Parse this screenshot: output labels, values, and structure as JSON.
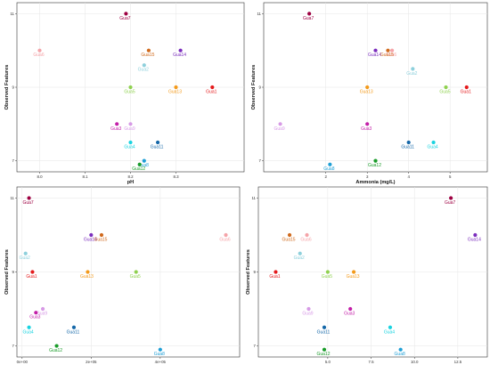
{
  "colors": {
    "Gua1": "#e41a1c",
    "Gua3": "#c31fa8",
    "Gua4": "#19d3e0",
    "Gua5": "#8fd14f",
    "Gua6": "#f5a3a8",
    "Gua7": "#9e0142",
    "Gua8": "#1f9fd6",
    "Gua9": "#d79ae6",
    "Gua11": "#1467a8",
    "Gua12": "#1a9c2a",
    "Gua13": "#f39a1b",
    "Gua14": "#7b2dbd",
    "Gua15": "#d06a1d",
    "Gua2": "#8ed0dc"
  },
  "chart_data": [
    {
      "type": "scatter",
      "xlabel": "pH",
      "ylabel": "Observed Features",
      "xlim": [
        7.95,
        8.45
      ],
      "ylim": [
        6.7,
        11.3
      ],
      "xticks": [
        8.0,
        8.1,
        8.2,
        8.3
      ],
      "xtick_labels": [
        "8.0",
        "8.1",
        "8.2",
        "8.3"
      ],
      "yticks": [
        7,
        9,
        11
      ],
      "ytick_labels": [
        "7",
        "9",
        "11"
      ],
      "points": [
        {
          "label": "Gua7",
          "x": 8.19,
          "y": 11.0
        },
        {
          "label": "Gua6",
          "x": 8.0,
          "y": 10.0
        },
        {
          "label": "Gua15",
          "x": 8.24,
          "y": 10.0
        },
        {
          "label": "Gua14",
          "x": 8.31,
          "y": 10.0
        },
        {
          "label": "Gua2",
          "x": 8.23,
          "y": 9.6
        },
        {
          "label": "Gua5",
          "x": 8.2,
          "y": 9.0
        },
        {
          "label": "Gua13",
          "x": 8.3,
          "y": 9.0
        },
        {
          "label": "Gua1",
          "x": 8.38,
          "y": 9.0
        },
        {
          "label": "Gua3",
          "x": 8.17,
          "y": 8.0
        },
        {
          "label": "Gua9",
          "x": 8.2,
          "y": 8.0
        },
        {
          "label": "Gua4",
          "x": 8.2,
          "y": 7.5
        },
        {
          "label": "Gua11",
          "x": 8.26,
          "y": 7.5
        },
        {
          "label": "Gua8",
          "x": 8.23,
          "y": 7.0
        },
        {
          "label": "Gua12",
          "x": 8.22,
          "y": 6.9
        }
      ]
    },
    {
      "type": "scatter",
      "xlabel": "Ammonia (mg/L)",
      "ylabel": "Observed Features",
      "xlim": [
        0.5,
        5.9
      ],
      "ylim": [
        6.7,
        11.3
      ],
      "xticks": [
        2,
        3,
        4,
        5
      ],
      "xtick_labels": [
        "2",
        "3",
        "4",
        "5"
      ],
      "yticks": [
        7,
        9,
        11
      ],
      "ytick_labels": [
        "7",
        "9",
        "11"
      ],
      "points": [
        {
          "label": "Gua7",
          "x": 1.6,
          "y": 11.0
        },
        {
          "label": "Gua14",
          "x": 3.2,
          "y": 10.0
        },
        {
          "label": "Gua6",
          "x": 3.6,
          "y": 10.0
        },
        {
          "label": "Gua15",
          "x": 3.5,
          "y": 10.0
        },
        {
          "label": "Gua2",
          "x": 4.1,
          "y": 9.5
        },
        {
          "label": "Gua13",
          "x": 3.0,
          "y": 9.0
        },
        {
          "label": "Gua5",
          "x": 4.9,
          "y": 9.0
        },
        {
          "label": "Gua1",
          "x": 5.4,
          "y": 9.0
        },
        {
          "label": "Gua9",
          "x": 0.9,
          "y": 8.0
        },
        {
          "label": "Gua3",
          "x": 3.0,
          "y": 8.0
        },
        {
          "label": "Gua11",
          "x": 4.0,
          "y": 7.5
        },
        {
          "label": "Gua4",
          "x": 4.6,
          "y": 7.5
        },
        {
          "label": "Gua12",
          "x": 3.2,
          "y": 7.0
        },
        {
          "label": "Gua8",
          "x": 2.1,
          "y": 6.9
        }
      ]
    },
    {
      "type": "scatter",
      "xlabel": "CFU",
      "ylabel": "Observed Features",
      "xlim": [
        -0.15,
        6.3
      ],
      "ylim": [
        6.7,
        11.3
      ],
      "xticks": [
        0,
        2,
        4
      ],
      "xtick_labels": [
        "0e+00",
        "2e+05",
        "4e+05"
      ],
      "yticks": [
        7,
        9,
        11
      ],
      "ytick_labels": [
        "7",
        "9",
        "11"
      ],
      "points": [
        {
          "label": "Gua7",
          "x": 0.2,
          "y": 11.0
        },
        {
          "label": "Gua14",
          "x": 2.0,
          "y": 10.0
        },
        {
          "label": "Gua15",
          "x": 2.3,
          "y": 10.0
        },
        {
          "label": "Gua6",
          "x": 5.9,
          "y": 10.0
        },
        {
          "label": "Gua2",
          "x": 0.1,
          "y": 9.5
        },
        {
          "label": "Gua1",
          "x": 0.3,
          "y": 9.0
        },
        {
          "label": "Gua13",
          "x": 1.9,
          "y": 9.0
        },
        {
          "label": "Gua5",
          "x": 3.3,
          "y": 9.0
        },
        {
          "label": "Gua9",
          "x": 0.6,
          "y": 8.0
        },
        {
          "label": "Gua3",
          "x": 0.4,
          "y": 7.9
        },
        {
          "label": "Gua4",
          "x": 0.2,
          "y": 7.5
        },
        {
          "label": "Gua11",
          "x": 1.5,
          "y": 7.5
        },
        {
          "label": "Gua12",
          "x": 1.0,
          "y": 7.0
        },
        {
          "label": "Gua8",
          "x": 4.0,
          "y": 6.9
        }
      ]
    },
    {
      "type": "scatter",
      "xlabel": "DO (mg/L)",
      "ylabel": "Observed Features",
      "xlim": [
        1.0,
        14.2
      ],
      "ylim": [
        6.7,
        11.3
      ],
      "xticks": [
        5.0,
        7.5,
        10.0,
        12.5
      ],
      "xtick_labels": [
        "5.0",
        "7.5",
        "10.0",
        "12.5"
      ],
      "yticks": [
        7,
        9,
        11
      ],
      "ytick_labels": [
        "7",
        "9",
        "11"
      ],
      "points": [
        {
          "label": "Gua7",
          "x": 12.1,
          "y": 11.0
        },
        {
          "label": "Gua15",
          "x": 2.8,
          "y": 10.0
        },
        {
          "label": "Gua6",
          "x": 3.8,
          "y": 10.0
        },
        {
          "label": "Gua14",
          "x": 13.5,
          "y": 10.0
        },
        {
          "label": "Gua2",
          "x": 3.4,
          "y": 9.5
        },
        {
          "label": "Gua1",
          "x": 2.0,
          "y": 9.0
        },
        {
          "label": "Gua5",
          "x": 5.0,
          "y": 9.0
        },
        {
          "label": "Gua13",
          "x": 6.5,
          "y": 9.0
        },
        {
          "label": "Gua9",
          "x": 3.9,
          "y": 8.0
        },
        {
          "label": "Gua3",
          "x": 6.3,
          "y": 8.0
        },
        {
          "label": "Gua11",
          "x": 4.8,
          "y": 7.5
        },
        {
          "label": "Gua4",
          "x": 8.6,
          "y": 7.5
        },
        {
          "label": "Gua12",
          "x": 4.8,
          "y": 6.9
        },
        {
          "label": "Gua8",
          "x": 9.2,
          "y": 6.9
        }
      ]
    }
  ]
}
